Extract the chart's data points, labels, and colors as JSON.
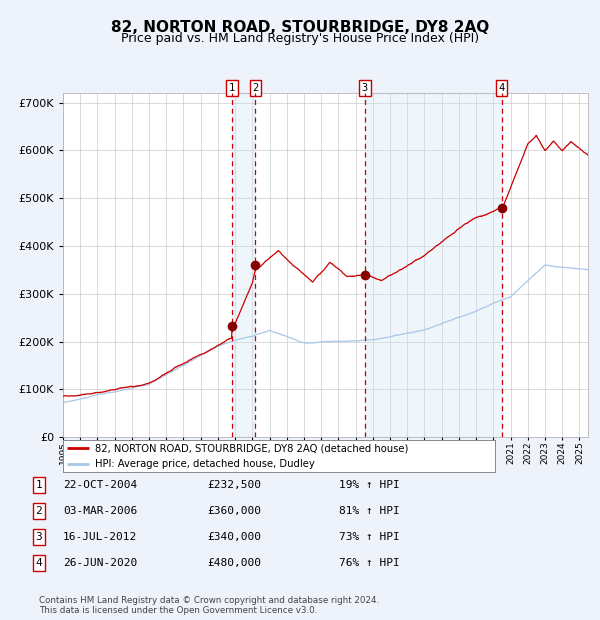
{
  "title": "82, NORTON ROAD, STOURBRIDGE, DY8 2AQ",
  "subtitle": "Price paid vs. HM Land Registry's House Price Index (HPI)",
  "title_fontsize": 11,
  "subtitle_fontsize": 9,
  "background_color": "#eef2fb",
  "plot_bg_color": "#ffffff",
  "ylim": [
    0,
    720000
  ],
  "yticks": [
    0,
    100000,
    200000,
    300000,
    400000,
    500000,
    600000,
    700000
  ],
  "legend_label_red": "82, NORTON ROAD, STOURBRIDGE, DY8 2AQ (detached house)",
  "legend_label_blue": "HPI: Average price, detached house, Dudley",
  "transactions": [
    {
      "id": 1,
      "date_num": 2004.81,
      "price": 232500,
      "label": "1",
      "date_str": "22-OCT-2004"
    },
    {
      "id": 2,
      "date_num": 2006.17,
      "price": 360000,
      "label": "2",
      "date_str": "03-MAR-2006"
    },
    {
      "id": 3,
      "date_num": 2012.54,
      "price": 340000,
      "label": "3",
      "date_str": "16-JUL-2012"
    },
    {
      "id": 4,
      "date_num": 2020.49,
      "price": 480000,
      "label": "4",
      "date_str": "26-JUN-2020"
    }
  ],
  "table_rows": [
    {
      "num": "1",
      "date": "22-OCT-2004",
      "price": "£232,500",
      "pct": "19% ↑ HPI"
    },
    {
      "num": "2",
      "date": "03-MAR-2006",
      "price": "£360,000",
      "pct": "81% ↑ HPI"
    },
    {
      "num": "3",
      "date": "16-JUL-2012",
      "price": "£340,000",
      "pct": "73% ↑ HPI"
    },
    {
      "num": "4",
      "date": "26-JUN-2020",
      "price": "£480,000",
      "pct": "76% ↑ HPI"
    }
  ],
  "footer": "Contains HM Land Registry data © Crown copyright and database right 2024.\nThis data is licensed under the Open Government Licence v3.0.",
  "red_color": "#cc0000",
  "blue_color": "#a8c8e8",
  "dot_color": "#880000",
  "grid_color": "#cccccc",
  "vline_color": "#cc0000",
  "shade_color": "#c8dff5",
  "xmin": 1995,
  "xmax": 2025.5
}
